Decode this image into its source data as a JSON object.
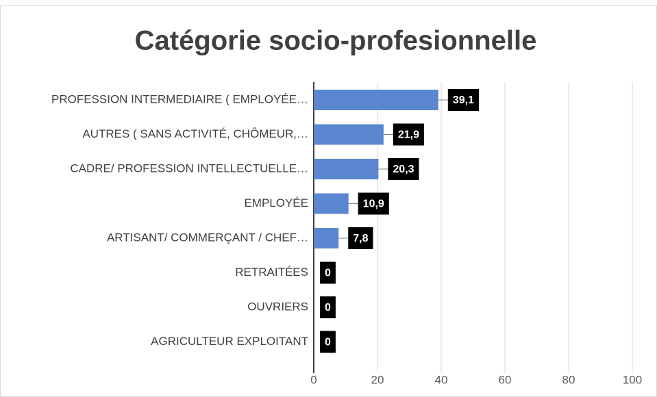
{
  "chart_data": {
    "type": "bar",
    "orientation": "horizontal",
    "title": "Catégorie socio-profesionnelle",
    "categories": [
      "PROFESSION INTERMEDIAIRE ( EMPLOYÉE…",
      "AUTRES ( SANS ACTIVITÉ, CHÔMEUR,…",
      "CADRE/ PROFESSION INTELLECTUELLE…",
      "EMPLOYÉE",
      "ARTISANT/ COMMERÇANT / CHEF…",
      "RETRAITÉES",
      "OUVRIERS",
      "AGRICULTEUR EXPLOITANT"
    ],
    "values": [
      39.1,
      21.9,
      20.3,
      10.9,
      7.8,
      0,
      0,
      0
    ],
    "value_labels": [
      "39,1",
      "21,9",
      "20,3",
      "10,9",
      "7,8",
      "0",
      "0",
      "0"
    ],
    "color": "#5b86d0",
    "xlim": [
      0,
      100
    ],
    "xticks": [
      0,
      20,
      40,
      60,
      80,
      100
    ],
    "grid": true
  }
}
